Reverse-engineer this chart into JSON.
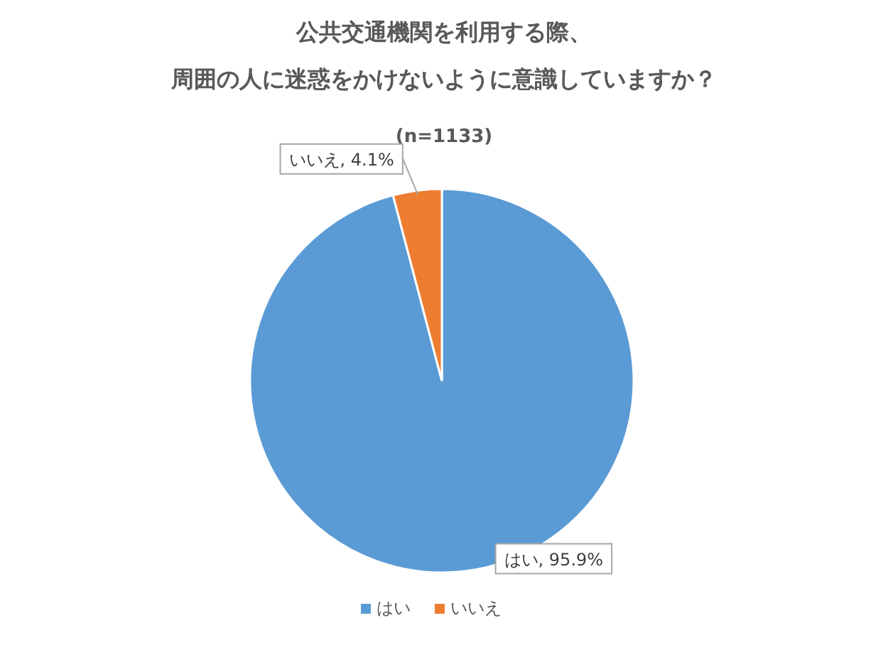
{
  "chart_data": {
    "type": "pie",
    "title": "公共交通機関を利用する際、周囲の人に迷惑をかけないように意識していますか？",
    "subtitle": "(n=1133)",
    "categories": [
      "はい",
      "いいえ"
    ],
    "values": [
      95.9,
      4.1
    ],
    "colors": [
      "#5b9bd5",
      "#ed7d31"
    ],
    "value_labels": [
      "はい, 95.9%",
      "いいえ, 4.1%"
    ],
    "legend": "bottom"
  }
}
